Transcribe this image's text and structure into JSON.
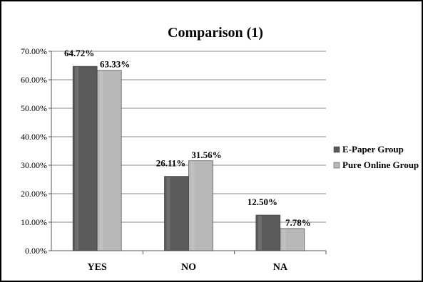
{
  "chart_data": {
    "type": "bar",
    "title": "Comparison (1)",
    "categories": [
      "YES",
      "NO",
      "NA"
    ],
    "series": [
      {
        "name": "E-Paper Group",
        "values": [
          64.72,
          26.11,
          12.5
        ],
        "labels": [
          "64.72%",
          "26.11%",
          "12.50%"
        ],
        "color": "#5a5a5a"
      },
      {
        "name": "Pure Online Group",
        "values": [
          63.33,
          31.56,
          7.78
        ],
        "labels": [
          "63.33%",
          "31.56%",
          "7.78%"
        ],
        "color": "#b8b8b8"
      }
    ],
    "ylim": [
      0,
      70
    ],
    "yticks": [
      "0.00%",
      "10.00%",
      "20.00%",
      "30.00%",
      "40.00%",
      "50.00%",
      "60.00%",
      "70.00%"
    ],
    "grid": true,
    "legend_position": "right"
  }
}
